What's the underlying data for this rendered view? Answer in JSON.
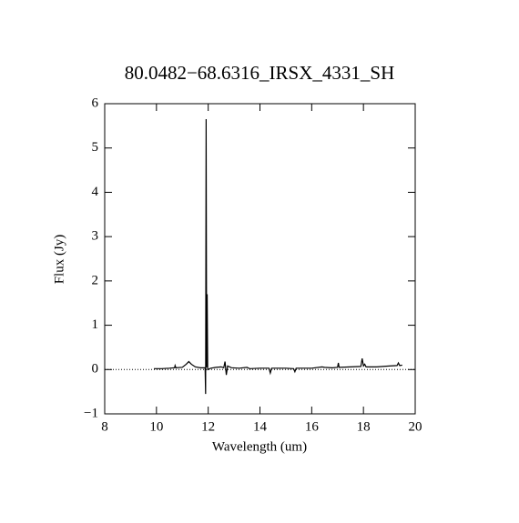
{
  "chart_data": {
    "type": "line",
    "title": "80.0482−68.6316_IRSX_4331_SH",
    "xlabel": "Wavelength (um)",
    "ylabel": "Flux (Jy)",
    "x": [
      9.9,
      10.2,
      10.5,
      10.7,
      10.72,
      10.75,
      11.0,
      11.15,
      11.25,
      11.35,
      11.5,
      11.7,
      11.88,
      11.9,
      11.92,
      11.94,
      11.96,
      11.98,
      12.1,
      12.3,
      12.5,
      12.6,
      12.65,
      12.7,
      12.75,
      12.9,
      13.2,
      13.5,
      13.6,
      14.0,
      14.35,
      14.4,
      14.45,
      15.0,
      15.3,
      15.35,
      15.4,
      16.0,
      16.4,
      16.5,
      16.8,
      17.0,
      17.03,
      17.06,
      17.5,
      17.9,
      17.95,
      18.0,
      18.05,
      18.1,
      18.5,
      19.0,
      19.3,
      19.35,
      19.4,
      19.5
    ],
    "values": [
      0.02,
      0.02,
      0.03,
      0.04,
      0.09,
      0.04,
      0.05,
      0.12,
      0.18,
      0.12,
      0.06,
      0.04,
      0.04,
      -0.55,
      5.65,
      0.05,
      1.7,
      0.0,
      0.03,
      0.05,
      0.06,
      0.04,
      0.18,
      -0.12,
      0.08,
      0.04,
      0.03,
      0.05,
      0.02,
      0.03,
      0.03,
      -0.08,
      0.03,
      0.03,
      0.02,
      -0.05,
      0.03,
      0.03,
      0.06,
      0.05,
      0.04,
      0.05,
      0.15,
      0.05,
      0.06,
      0.07,
      0.25,
      0.08,
      0.12,
      0.06,
      0.06,
      0.08,
      0.09,
      0.15,
      0.09,
      0.1
    ],
    "color": "#000000",
    "xlim": [
      8,
      20
    ],
    "xticks": [
      8,
      10,
      12,
      14,
      16,
      18,
      20
    ],
    "ylim": [
      -1,
      6
    ],
    "yticks": [
      {
        "value": -1,
        "label": "−1"
      },
      0,
      1,
      2,
      3,
      4,
      5,
      6
    ],
    "zero_line": true
  }
}
